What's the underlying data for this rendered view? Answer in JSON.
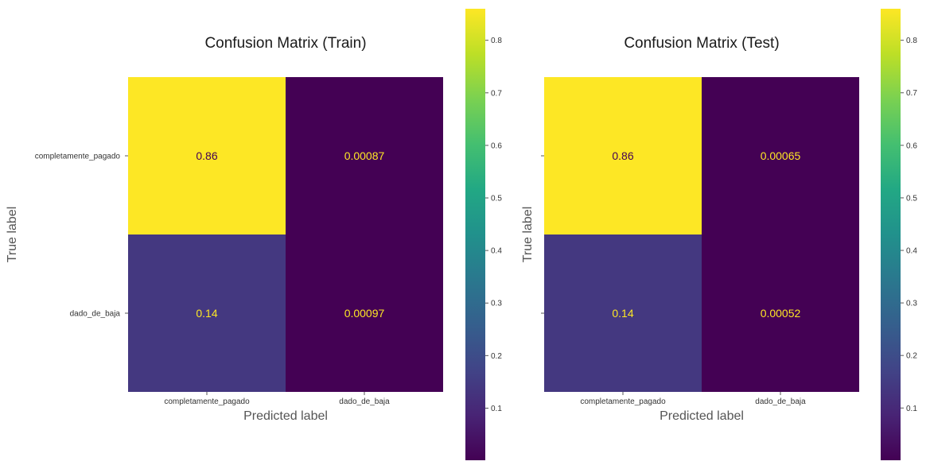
{
  "chart_data": [
    {
      "type": "heatmap",
      "title": "Confusion Matrix (Train)",
      "xlabel": "Predicted label",
      "ylabel": "True label",
      "x_categories": [
        "completamente_pagado",
        "dado_de_baja"
      ],
      "y_categories": [
        "completamente_pagado",
        "dado_de_baja"
      ],
      "values": [
        [
          0.86,
          0.00087
        ],
        [
          0.14,
          0.00097
        ]
      ],
      "value_labels": [
        [
          "0.86",
          "0.00087"
        ],
        [
          "0.14",
          "0.00097"
        ]
      ],
      "show_y_tick_labels": true,
      "colormap": "viridis",
      "colorbar_range": [
        0.00087,
        0.86
      ],
      "colorbar_ticks": [
        0.1,
        0.2,
        0.3,
        0.4,
        0.5,
        0.6,
        0.7,
        0.8
      ],
      "colorbar_tick_labels": [
        "0.1",
        "0.2",
        "0.3",
        "0.4",
        "0.5",
        "0.6",
        "0.7",
        "0.8"
      ],
      "grid": false
    },
    {
      "type": "heatmap",
      "title": "Confusion Matrix (Test)",
      "xlabel": "Predicted label",
      "ylabel": "True label",
      "x_categories": [
        "completamente_pagado",
        "dado_de_baja"
      ],
      "y_categories": [
        "completamente_pagado",
        "dado_de_baja"
      ],
      "values": [
        [
          0.86,
          0.00065
        ],
        [
          0.14,
          0.00052
        ]
      ],
      "value_labels": [
        [
          "0.86",
          "0.00065"
        ],
        [
          "0.14",
          "0.00052"
        ]
      ],
      "show_y_tick_labels": false,
      "colormap": "viridis",
      "colorbar_range": [
        0.00052,
        0.86
      ],
      "colorbar_ticks": [
        0.1,
        0.2,
        0.3,
        0.4,
        0.5,
        0.6,
        0.7,
        0.8
      ],
      "colorbar_tick_labels": [
        "0.1",
        "0.2",
        "0.3",
        "0.4",
        "0.5",
        "0.6",
        "0.7",
        "0.8"
      ],
      "grid": false
    }
  ]
}
